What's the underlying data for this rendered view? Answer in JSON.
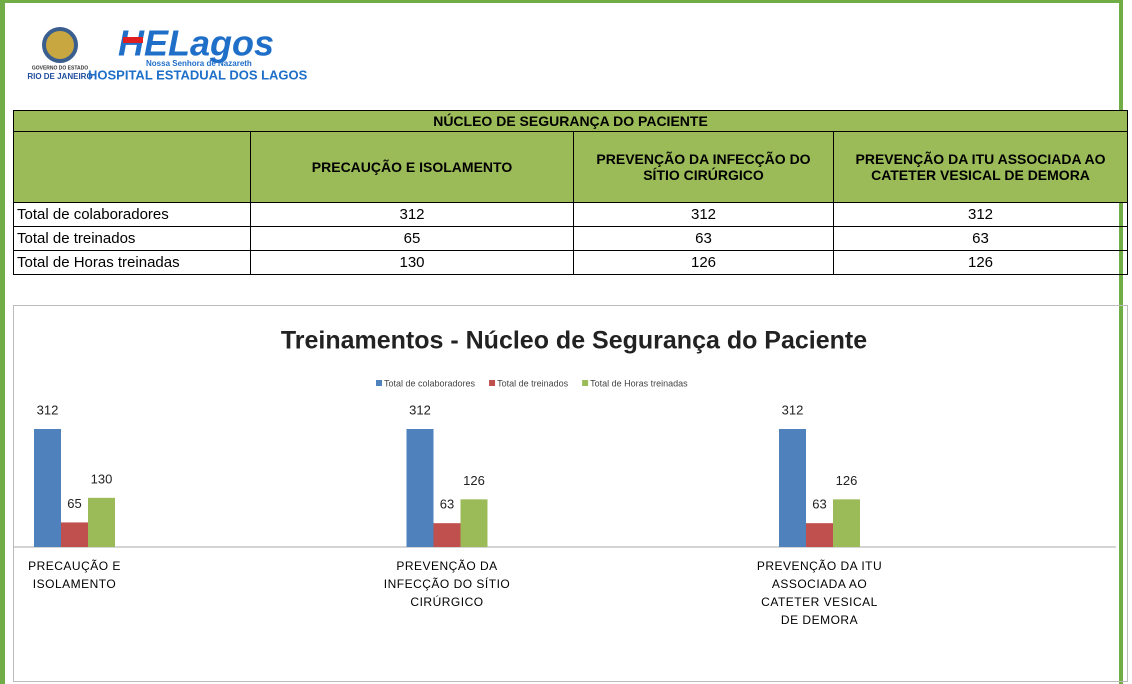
{
  "header": {
    "logo_text": "HELagos",
    "logo_subtitle": "Nossa Senhora de Nazareth",
    "hospital": "HOSPITAL ESTADUAL DOS LAGOS",
    "government": "GOVERNO DO ESTADO",
    "state": "RIO DE JANEIRO"
  },
  "table": {
    "title": "NÚCLEO DE SEGURANÇA DO PACIENTE",
    "columns": [
      "PRECAUÇÃO E ISOLAMENTO",
      "PREVENÇÃO DA INFECÇÃO DO SÍTIO CIRÚRGICO",
      "PREVENÇÃO DA ITU ASSOCIADA AO CATETER VESICAL DE DEMORA"
    ],
    "rows": [
      [
        "Total de colaboradores",
        312,
        312,
        312
      ],
      [
        "Total de treinados",
        65,
        63,
        63
      ],
      [
        "Total de Horas treinadas",
        130,
        126,
        126
      ]
    ]
  },
  "chart_data": {
    "type": "bar",
    "title": "Treinamentos - Núcleo de Segurança do Paciente",
    "categories": [
      "PRECAUÇÃO E ISOLAMENTO",
      "PREVENÇÃO DA INFECÇÃO DO SÍTIO CIRÚRGICO",
      "PREVENÇÃO DA ITU ASSOCIADA AO CATETER VESICAL DE DEMORA"
    ],
    "series": [
      {
        "name": "Total de colaboradores",
        "color": "#4f81bd",
        "values": [
          312,
          312,
          312
        ]
      },
      {
        "name": "Total de treinados",
        "color": "#c0504d",
        "values": [
          65,
          63,
          63
        ]
      },
      {
        "name": "Total de Horas treinadas",
        "color": "#9bbb59",
        "values": [
          130,
          126,
          126
        ]
      }
    ],
    "ylim": [
      0,
      312
    ],
    "legend": "top"
  }
}
